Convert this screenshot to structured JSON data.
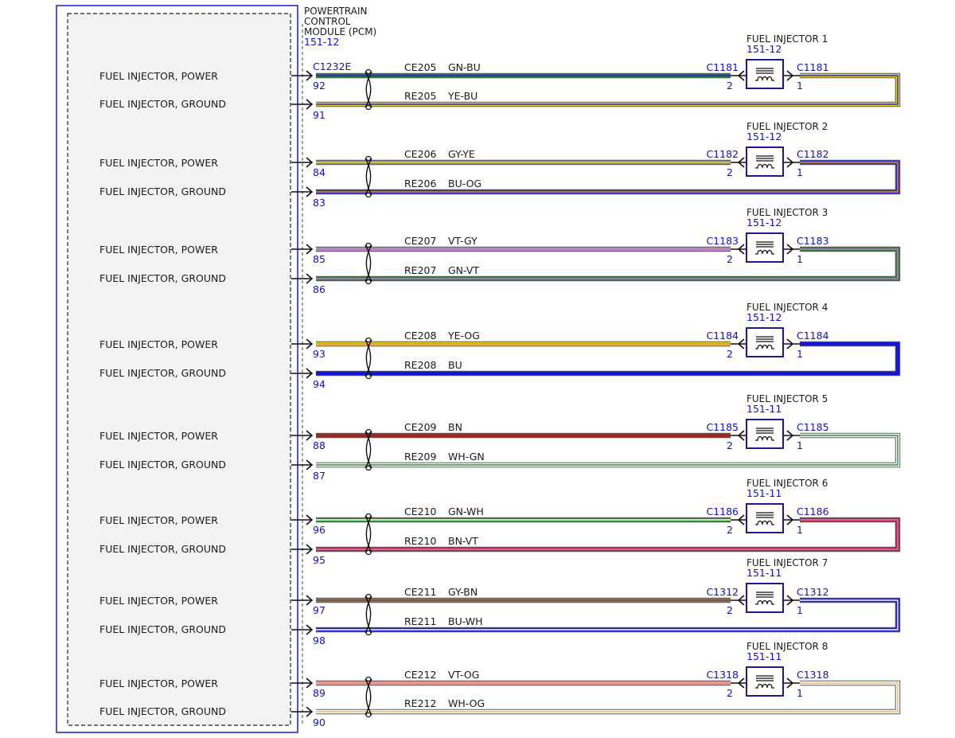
{
  "module": {
    "name_lines": [
      "POWERTRAIN",
      "CONTROL",
      "MODULE (PCM)"
    ],
    "ref": "151-12",
    "connector": "C1232E"
  },
  "circuits": [
    {
      "injector": "FUEL INJECTOR 1",
      "ref": "151-12",
      "connector": "C1181",
      "power": {
        "label": "FUEL INJECTOR, POWER",
        "pin": "92",
        "circuit": "CE205",
        "color_code": "GN-BU",
        "colors": [
          "#1f7a3a",
          "#2a2acc"
        ]
      },
      "ground": {
        "label": "FUEL INJECTOR, GROUND",
        "pin": "91",
        "circuit": "RE205",
        "color_code": "YE-BU",
        "colors": [
          "#e8d21a",
          "#2a2acc"
        ]
      }
    },
    {
      "injector": "FUEL INJECTOR 2",
      "ref": "151-12",
      "connector": "C1182",
      "power": {
        "label": "FUEL INJECTOR, POWER",
        "pin": "84",
        "circuit": "CE206",
        "color_code": "GY-YE",
        "colors": [
          "#8a8a8a",
          "#e8d21a"
        ]
      },
      "ground": {
        "label": "FUEL INJECTOR, GROUND",
        "pin": "83",
        "circuit": "RE206",
        "color_code": "BU-OG",
        "colors": [
          "#2a2acc",
          "#e89020"
        ]
      }
    },
    {
      "injector": "FUEL INJECTOR 3",
      "ref": "151-12",
      "connector": "C1183",
      "power": {
        "label": "FUEL INJECTOR, POWER",
        "pin": "85",
        "circuit": "CE207",
        "color_code": "VT-GY",
        "colors": [
          "#c77dd8",
          "#9a9a9a"
        ]
      },
      "ground": {
        "label": "FUEL INJECTOR, GROUND",
        "pin": "86",
        "circuit": "RE207",
        "color_code": "GN-VT",
        "colors": [
          "#2e7d32",
          "#c77dd8"
        ]
      }
    },
    {
      "injector": "FUEL INJECTOR 4",
      "ref": "151-12",
      "connector": "C1184",
      "power": {
        "label": "FUEL INJECTOR, POWER",
        "pin": "93",
        "circuit": "CE208",
        "color_code": "YE-OG",
        "colors": [
          "#e8d21a",
          "#e89020"
        ]
      },
      "ground": {
        "label": "FUEL INJECTOR, GROUND",
        "pin": "94",
        "circuit": "RE208",
        "color_code": "BU",
        "colors": [
          "#1414e0",
          "#1414e0"
        ]
      }
    },
    {
      "injector": "FUEL INJECTOR 5",
      "ref": "151-11",
      "connector": "C1185",
      "power": {
        "label": "FUEL INJECTOR, POWER",
        "pin": "88",
        "circuit": "CE209",
        "color_code": "BN",
        "colors": [
          "#9a2a22",
          "#9a2a22"
        ]
      },
      "ground": {
        "label": "FUEL INJECTOR, GROUND",
        "pin": "87",
        "circuit": "RE209",
        "color_code": "WH-GN",
        "colors": [
          "#ffffff",
          "#2e8b3a"
        ]
      }
    },
    {
      "injector": "FUEL INJECTOR 6",
      "ref": "151-11",
      "connector": "C1186",
      "power": {
        "label": "FUEL INJECTOR, POWER",
        "pin": "96",
        "circuit": "CE210",
        "color_code": "GN-WH",
        "colors": [
          "#2e8b2e",
          "#ffffff"
        ]
      },
      "ground": {
        "label": "FUEL INJECTOR, GROUND",
        "pin": "95",
        "circuit": "RE210",
        "color_code": "BN-VT",
        "colors": [
          "#b0283a",
          "#c77dd8"
        ]
      }
    },
    {
      "injector": "FUEL INJECTOR 7",
      "ref": "151-11",
      "connector": "C1312",
      "power": {
        "label": "FUEL INJECTOR, POWER",
        "pin": "97",
        "circuit": "CE211",
        "color_code": "GY-BN",
        "colors": [
          "#8a7a70",
          "#7a4a2a"
        ]
      },
      "ground": {
        "label": "FUEL INJECTOR, GROUND",
        "pin": "98",
        "circuit": "RE211",
        "color_code": "BU-WH",
        "colors": [
          "#1a1ad0",
          "#ffffff"
        ]
      }
    },
    {
      "injector": "FUEL INJECTOR 8",
      "ref": "151-11",
      "connector": "C1318",
      "power": {
        "label": "FUEL INJECTOR, POWER",
        "pin": "89",
        "circuit": "CE212",
        "color_code": "VT-OG",
        "colors": [
          "#e890b0",
          "#e8a060"
        ]
      },
      "ground": {
        "label": "FUEL INJECTOR, GROUND",
        "pin": "90",
        "circuit": "RE212",
        "color_code": "WH-OG",
        "colors": [
          "#ffffff",
          "#e8b870"
        ]
      }
    }
  ]
}
